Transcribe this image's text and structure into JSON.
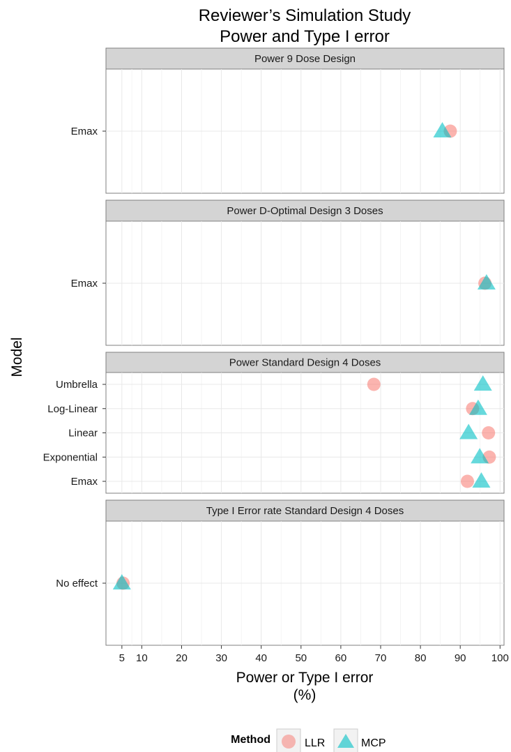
{
  "chart_data": {
    "type": "scatter",
    "title": "Reviewer’s Simulation Study",
    "subtitle": "Power and Type I error",
    "xlabel": "Power or Type I error",
    "xlabel_unit": "(%)",
    "ylabel": "Model",
    "xlim": [
      1,
      101
    ],
    "x_ticks": [
      5,
      10,
      20,
      30,
      40,
      50,
      60,
      70,
      80,
      90,
      100
    ],
    "grid": true,
    "legend_position": "bottom",
    "legend": {
      "title": "Method",
      "entries": [
        {
          "name": "LLR",
          "shape": "circle",
          "color": "#f8766d"
        },
        {
          "name": "MCP",
          "shape": "triangle",
          "color": "#00bfc4"
        }
      ]
    },
    "panels": [
      {
        "title": "Power 9 Dose Design",
        "categories": [
          "Emax"
        ],
        "series": [
          {
            "name": "LLR",
            "values": [
              87.5
            ]
          },
          {
            "name": "MCP",
            "values": [
              85.5
            ]
          }
        ]
      },
      {
        "title": "Power D-Optimal Design 3 Doses",
        "categories": [
          "Emax"
        ],
        "series": [
          {
            "name": "LLR",
            "values": [
              96.2
            ]
          },
          {
            "name": "MCP",
            "values": [
              96.6
            ]
          }
        ]
      },
      {
        "title": "Power Standard Design 4 Doses",
        "categories": [
          "Emax",
          "Exponential",
          "Linear",
          "Log-Linear",
          "Umbrella"
        ],
        "series": [
          {
            "name": "LLR",
            "values": [
              91.8,
              97.3,
              97.1,
              93.1,
              68.3
            ]
          },
          {
            "name": "MCP",
            "values": [
              95.3,
              94.9,
              92.1,
              94.5,
              95.7
            ]
          }
        ]
      },
      {
        "title": "Type I Error rate Standard Design 4 Doses",
        "categories": [
          "No effect"
        ],
        "series": [
          {
            "name": "LLR",
            "values": [
              5.3
            ]
          },
          {
            "name": "MCP",
            "values": [
              5.0
            ]
          }
        ]
      }
    ]
  }
}
